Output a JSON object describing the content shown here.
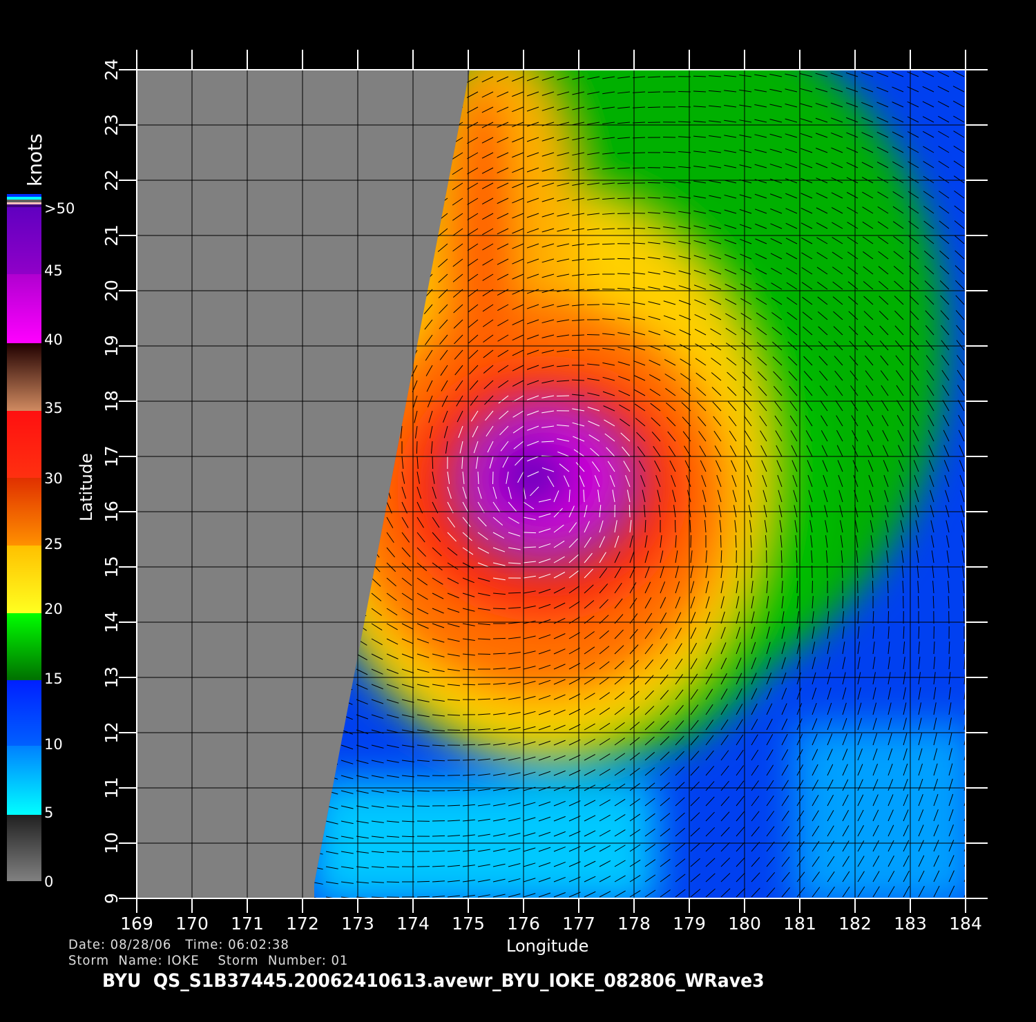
{
  "map": {
    "extent": {
      "lon": [
        169,
        184
      ],
      "lat": [
        9,
        24
      ]
    },
    "storm_center_approx": {
      "lon": 176.3,
      "lat": 16.4
    },
    "xlabel": "Longitude",
    "ylabel": "Latitude",
    "lon_ticks": [
      "169",
      "170",
      "171",
      "172",
      "173",
      "174",
      "175",
      "176",
      "177",
      "178",
      "179",
      "180",
      "181",
      "182",
      "183",
      "184"
    ],
    "lat_ticks": [
      "9",
      "10",
      "11",
      "12",
      "13",
      "14",
      "15",
      "16",
      "17",
      "18",
      "19",
      "20",
      "21",
      "22",
      "23",
      "24"
    ],
    "no_data_color": "#808080"
  },
  "colorbar": {
    "unit": "knots",
    "labels": [
      "0",
      "5",
      "10",
      "15",
      "20",
      "25",
      "30",
      "35",
      "40",
      "45",
      ">50"
    ],
    "colors": {
      "0-5": "#606060",
      "5-10": "#00ffff",
      "10-15": "#0030ff",
      "15-20": "#00c000",
      "20-25": "#ffd000",
      "25-30": "#ff7000",
      "30-35": "#ff2010",
      "35-40": "#7a3a2a",
      "40-45": "#ff00ff",
      "45-50": "#7000c0"
    }
  },
  "info": {
    "line1": "Date: 08/28/06   Time: 06:02:38",
    "line2": "Storm  Name: IOKE    Storm  Number: 01",
    "filename": "BYU  QS_S1B37445.20062410613.avewr_BYU_IOKE_082806_WRave3"
  }
}
